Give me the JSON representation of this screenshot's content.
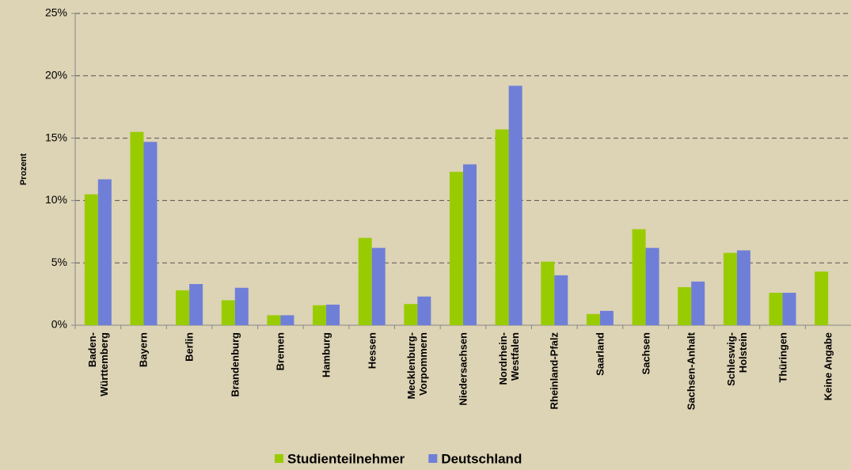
{
  "chart_data": {
    "type": "bar",
    "y_label": "Prozent",
    "categories": [
      "Baden-\nWürttemberg",
      "Bayern",
      "Berlin",
      "Brandenburg",
      "Bremen",
      "Hamburg",
      "Hessen",
      "Mecklenburg-\nVorpommern",
      "Niedersachsen",
      "Nordrhein-\nWestfalen",
      "Rheinland-Pfalz",
      "Saarland",
      "Sachsen",
      "Sachsen-Anhalt",
      "Schleswig-\nHolstein",
      "Thüringen",
      "Keine Angabe"
    ],
    "series": [
      {
        "name": "Studienteilnehmer",
        "color": "#99cc00",
        "values": [
          10.5,
          15.5,
          2.8,
          2.0,
          0.8,
          1.6,
          7.0,
          1.7,
          12.3,
          15.7,
          5.1,
          0.9,
          7.7,
          3.05,
          5.8,
          2.6,
          4.3
        ]
      },
      {
        "name": "Deutschland",
        "color": "#6f7fd8",
        "values": [
          11.7,
          14.7,
          3.3,
          3.0,
          0.8,
          1.65,
          6.2,
          2.3,
          12.9,
          19.2,
          4.0,
          1.15,
          6.2,
          3.5,
          6.0,
          2.6,
          null
        ]
      }
    ],
    "ylim": [
      0,
      25
    ],
    "yticks": [
      {
        "value": 0,
        "label": "0%"
      },
      {
        "value": 5,
        "label": "5%"
      },
      {
        "value": 10,
        "label": "10%"
      },
      {
        "value": 15,
        "label": "15%"
      },
      {
        "value": 20,
        "label": "20%"
      },
      {
        "value": 25,
        "label": "25%"
      }
    ],
    "grid": true,
    "legend": "bottom"
  }
}
